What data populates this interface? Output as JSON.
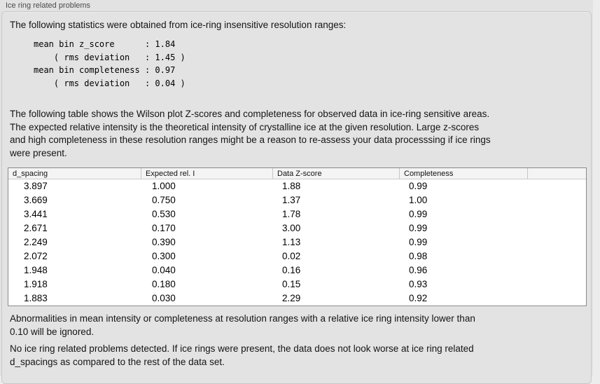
{
  "colors": {
    "window_bg": "#e2e2e2",
    "right_margin_bg": "#ececec",
    "groupbox_border": "#c8c8c8",
    "table_bg": "#ffffff",
    "table_border": "#8a8a8a",
    "table_header_bg": "#f4f4f4",
    "label_color": "#4a4a4a",
    "text_color": "#141414"
  },
  "panel": {
    "title": "Ice ring related problems"
  },
  "intro": {
    "text": "The following statistics were obtained from ice-ring insensitive resolution ranges:"
  },
  "stats": {
    "lines": [
      "mean bin z_score      : 1.84",
      "    ( rms deviation   : 1.45 )",
      "mean bin completeness : 0.97",
      "    ( rms deviation   : 0.04 )"
    ]
  },
  "description": {
    "lines": [
      "The following table shows the Wilson plot Z-scores and completeness for observed data in ice-ring sensitive areas.",
      "The expected relative intensity is the theoretical intensity of crystalline ice at the given resolution. Large z-scores",
      "and high completeness in these resolution ranges might be a reason to re-assess your data processsing if ice rings",
      "were present."
    ]
  },
  "table": {
    "columns": [
      "d_spacing",
      "Expected rel. I",
      "Data Z-score",
      "Completeness",
      ""
    ],
    "rows": [
      [
        "3.897",
        "1.000",
        "1.88",
        "0.99"
      ],
      [
        "3.669",
        "0.750",
        "1.37",
        "1.00"
      ],
      [
        "3.441",
        "0.530",
        "1.78",
        "0.99"
      ],
      [
        "2.671",
        "0.170",
        "3.00",
        "0.99"
      ],
      [
        "2.249",
        "0.390",
        "1.13",
        "0.99"
      ],
      [
        "2.072",
        "0.300",
        "0.02",
        "0.98"
      ],
      [
        "1.948",
        "0.040",
        "0.16",
        "0.96"
      ],
      [
        "1.918",
        "0.180",
        "0.15",
        "0.93"
      ],
      [
        "1.883",
        "0.030",
        "2.29",
        "0.92"
      ]
    ]
  },
  "note": {
    "lines": [
      "Abnormalities in mean intensity or completeness at resolution ranges with a relative ice ring intensity lower than",
      "0.10 will be ignored."
    ]
  },
  "conclusion": {
    "lines": [
      "No ice ring related problems detected. If ice rings were present, the data does not look worse at ice ring related",
      "d_spacings as compared to the rest of the data set."
    ]
  }
}
